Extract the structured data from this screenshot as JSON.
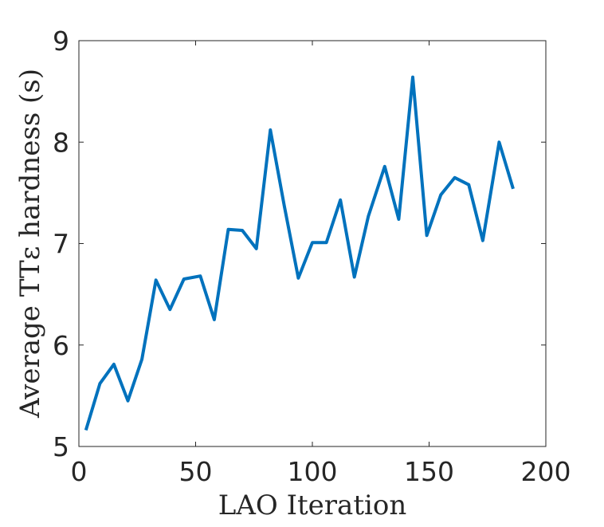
{
  "chart_data": {
    "type": "line",
    "xlabel": "LAO Iteration",
    "ylabel": "Average TTε hardness (s)",
    "xlim": [
      0,
      200
    ],
    "ylim": [
      5,
      9
    ],
    "xticks": [
      0,
      50,
      100,
      150,
      200
    ],
    "yticks": [
      5,
      6,
      7,
      8,
      9
    ],
    "xtick_labels": [
      "0",
      "50",
      "100",
      "150",
      "200"
    ],
    "ytick_labels": [
      "5",
      "6",
      "7",
      "8",
      "9"
    ],
    "grid": false,
    "line_color": "#0072BD",
    "series": [
      {
        "x": [
          3,
          9,
          15,
          21,
          27,
          33,
          39,
          45,
          52,
          58,
          64,
          70,
          76,
          82,
          88,
          94,
          100,
          106,
          112,
          118,
          124,
          131,
          137,
          143,
          149,
          155,
          161,
          167,
          173,
          180,
          186
        ],
        "values": [
          5.16,
          5.62,
          5.81,
          5.45,
          5.86,
          6.64,
          6.35,
          6.65,
          6.68,
          6.25,
          7.14,
          7.13,
          6.95,
          8.12,
          7.37,
          6.66,
          7.01,
          7.01,
          7.43,
          6.67,
          7.27,
          7.76,
          7.24,
          8.64,
          7.08,
          7.48,
          7.65,
          7.58,
          7.03,
          8.0,
          7.54
        ]
      }
    ]
  }
}
